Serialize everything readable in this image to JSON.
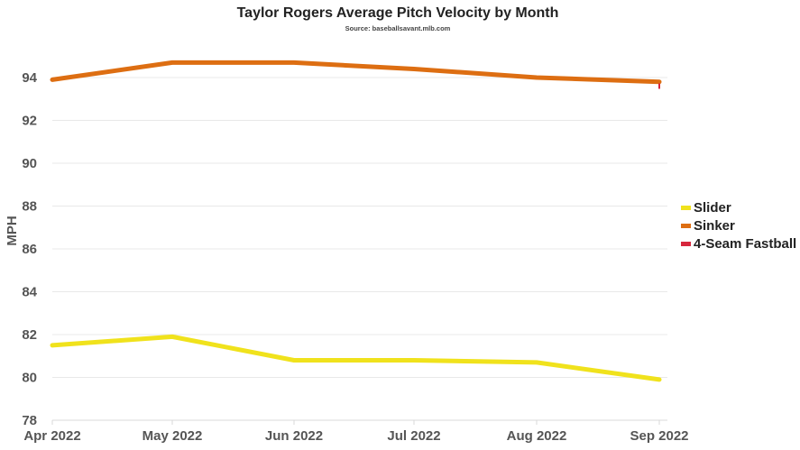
{
  "chart_data": {
    "type": "line",
    "title": "Taylor Rogers Average Pitch Velocity by Month",
    "subtitle": "Source: baseballsavant.mlb.com",
    "xlabel": "",
    "ylabel": "MPH",
    "categories": [
      "Apr 2022",
      "May 2022",
      "Jun 2022",
      "Jul 2022",
      "Aug 2022",
      "Sep 2022"
    ],
    "ylim": [
      78,
      95.6
    ],
    "yticks": [
      78,
      80,
      82,
      84,
      86,
      88,
      90,
      92,
      94
    ],
    "legend_position": "right",
    "series": [
      {
        "name": "Slider",
        "color": "#f0e21c",
        "values": [
          81.5,
          81.9,
          80.8,
          80.8,
          80.7,
          79.9
        ]
      },
      {
        "name": "Sinker",
        "color": "#dd6e12",
        "values": [
          93.9,
          94.7,
          94.7,
          94.4,
          94.0,
          93.8
        ]
      },
      {
        "name": "4-Seam Fastball",
        "color": "#d7263d",
        "values": [
          null,
          null,
          null,
          null,
          null,
          93.6
        ]
      }
    ]
  }
}
